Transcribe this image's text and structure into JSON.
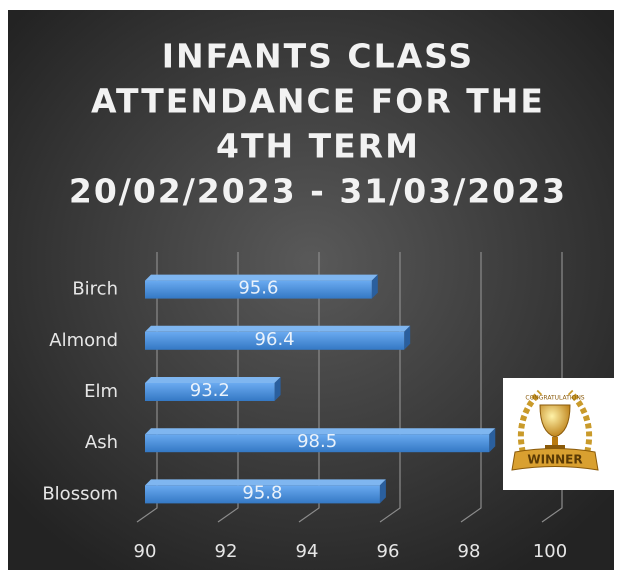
{
  "chart_data": {
    "type": "bar",
    "orientation": "horizontal",
    "title": [
      "INFANTS CLASS",
      "ATTENDANCE FOR THE",
      "4TH TERM",
      "20/02/2023 - 31/03/2023"
    ],
    "categories": [
      "Birch",
      "Almond",
      "Elm",
      "Ash",
      "Blossom"
    ],
    "values": [
      95.6,
      96.4,
      93.2,
      98.5,
      95.8
    ],
    "color": "#4a90d9",
    "xlim": [
      90,
      100
    ],
    "xticks": [
      90,
      92,
      94,
      96,
      98,
      100
    ],
    "grid": true,
    "badge": {
      "top_text": "CONGRATULATIONS",
      "text": "WINNER"
    }
  }
}
